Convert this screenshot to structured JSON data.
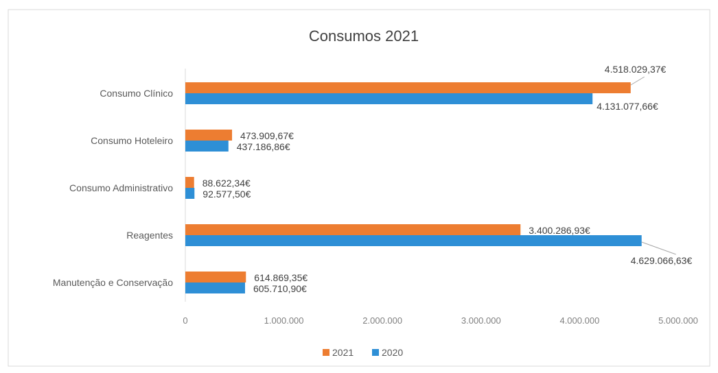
{
  "chart_data": {
    "type": "bar",
    "orientation": "horizontal",
    "title": "Consumos 2021",
    "categories": [
      "Consumo Clínico",
      "Consumo Hoteleiro",
      "Consumo Administrativo",
      "Reagentes",
      "Manutenção e Conservação"
    ],
    "series": [
      {
        "name": "2021",
        "color": "#ED7D31",
        "values": [
          4518029.37,
          473909.67,
          88622.34,
          3400286.93,
          614869.35
        ],
        "labels": [
          "4.518.029,37€",
          "473.909,67€",
          "88.622,34€",
          "3.400.286,93€",
          "614.869,35€"
        ]
      },
      {
        "name": "2020",
        "color": "#2E8FD6",
        "values": [
          4131077.66,
          437186.86,
          92577.5,
          4629066.63,
          605710.9
        ],
        "labels": [
          "4.131.077,66€",
          "437.186,86€",
          "92.577,50€",
          "4.629.066,63€",
          "605.710,90€"
        ]
      }
    ],
    "xlim": [
      0,
      5000000
    ],
    "x_ticks": [
      0,
      1000000,
      2000000,
      3000000,
      4000000,
      5000000
    ],
    "x_tick_labels": [
      "0",
      "1.000.000",
      "2.000.000",
      "3.000.000",
      "4.000.000",
      "5.000.000"
    ],
    "grid": false,
    "legend": {
      "placement": "bottom",
      "entries": [
        "2021",
        "2020"
      ]
    }
  }
}
